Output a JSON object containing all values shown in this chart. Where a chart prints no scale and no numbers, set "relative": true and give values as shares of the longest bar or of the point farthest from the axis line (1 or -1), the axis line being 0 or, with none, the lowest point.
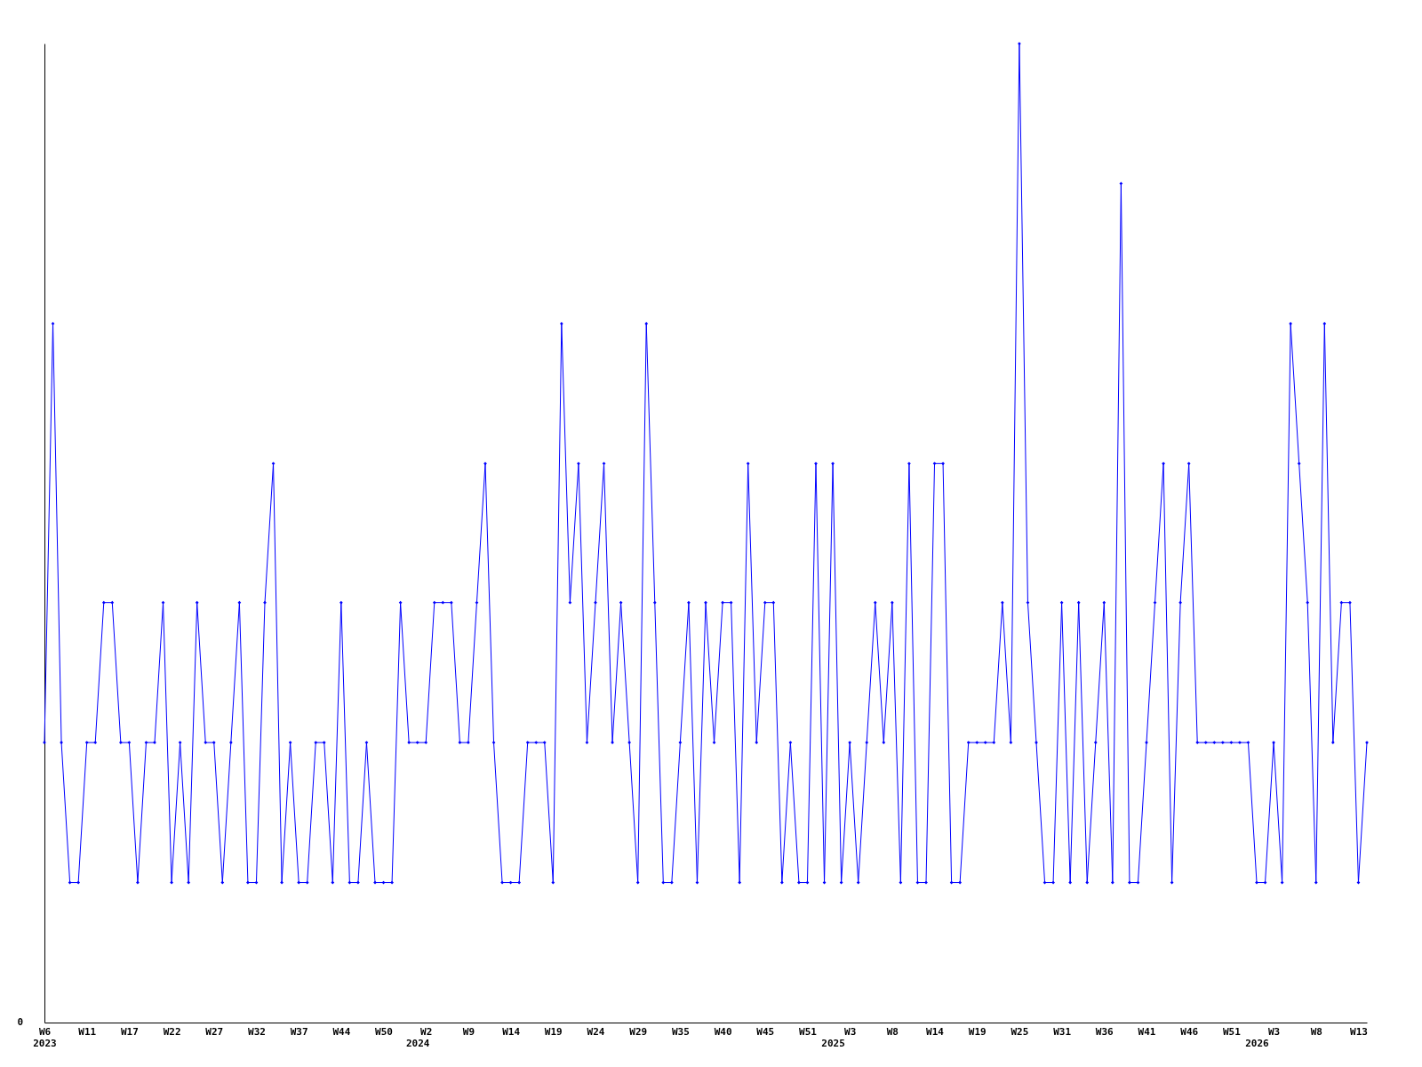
{
  "chart_data": {
    "type": "line",
    "relative": true,
    "marker": "diamond",
    "line_style": "solid",
    "annotations": [
      "0"
    ],
    "categories": [
      "W6\n2023",
      null,
      null,
      null,
      null,
      "W11",
      null,
      null,
      null,
      null,
      "W17",
      null,
      null,
      null,
      null,
      "W22",
      null,
      null,
      null,
      null,
      "W27",
      null,
      null,
      null,
      null,
      "W32",
      null,
      null,
      null,
      null,
      "W37",
      null,
      null,
      null,
      null,
      "W44",
      null,
      null,
      null,
      null,
      "W50",
      null,
      null,
      null,
      "\n2024",
      "W2",
      null,
      null,
      null,
      null,
      "W9",
      null,
      null,
      null,
      null,
      "W14",
      null,
      null,
      null,
      null,
      "W19",
      null,
      null,
      null,
      null,
      "W24",
      null,
      null,
      null,
      null,
      "W29",
      null,
      null,
      null,
      null,
      "W35",
      null,
      null,
      null,
      null,
      "W40",
      null,
      null,
      null,
      null,
      "W45",
      null,
      null,
      null,
      null,
      "W51",
      null,
      null,
      "\n2025",
      null,
      "W3",
      null,
      null,
      null,
      null,
      "W8",
      null,
      null,
      null,
      null,
      "W14",
      null,
      null,
      null,
      null,
      "W19",
      null,
      null,
      null,
      null,
      "W25",
      null,
      null,
      null,
      null,
      "W31",
      null,
      null,
      null,
      null,
      "W36",
      null,
      null,
      null,
      null,
      "W41",
      null,
      null,
      null,
      null,
      "W46",
      null,
      null,
      null,
      null,
      "W51",
      null,
      null,
      "\n2026",
      null,
      "W3",
      null,
      null,
      null,
      null,
      "W8",
      null,
      null,
      null,
      null,
      "W13",
      null
    ],
    "series": [
      {
        "color": "#0000ff",
        "values": [
          0.286,
          0.714,
          0.286,
          0.143,
          0.143,
          0.286,
          0.286,
          0.429,
          0.429,
          0.286,
          0.286,
          0.143,
          0.286,
          0.286,
          0.429,
          0.143,
          0.286,
          0.143,
          0.429,
          0.286,
          0.286,
          0.143,
          0.286,
          0.429,
          0.143,
          0.143,
          0.429,
          0.571,
          0.143,
          0.286,
          0.143,
          0.143,
          0.286,
          0.286,
          0.143,
          0.429,
          0.143,
          0.143,
          0.286,
          0.143,
          0.143,
          0.143,
          0.429,
          0.286,
          0.286,
          0.286,
          0.429,
          0.429,
          0.429,
          0.286,
          0.286,
          0.429,
          0.571,
          0.286,
          0.143,
          0.143,
          0.143,
          0.286,
          0.286,
          0.286,
          0.143,
          0.714,
          0.429,
          0.571,
          0.286,
          0.429,
          0.571,
          0.286,
          0.429,
          0.286,
          0.143,
          0.714,
          0.429,
          0.143,
          0.143,
          0.286,
          0.429,
          0.143,
          0.429,
          0.286,
          0.429,
          0.429,
          0.143,
          0.571,
          0.286,
          0.429,
          0.429,
          0.143,
          0.286,
          0.143,
          0.143,
          0.571,
          0.143,
          0.571,
          0.143,
          0.286,
          0.143,
          0.286,
          0.429,
          0.286,
          0.429,
          0.143,
          0.571,
          0.143,
          0.143,
          0.571,
          0.571,
          0.143,
          0.143,
          0.286,
          0.286,
          0.286,
          0.286,
          0.429,
          0.286,
          1,
          0.429,
          0.286,
          0.143,
          0.143,
          0.429,
          0.143,
          0.429,
          0.143,
          0.286,
          0.429,
          0.143,
          0.857,
          0.143,
          0.143,
          0.286,
          0.429,
          0.571,
          0.143,
          0.429,
          0.571,
          0.286,
          0.286,
          0.286,
          0.286,
          0.286,
          0.286,
          0.286,
          0.143,
          0.143,
          0.286,
          0.143,
          0.714,
          0.571,
          0.429,
          0.143,
          0.714,
          0.286,
          0.429,
          0.429,
          0.143,
          0.286
        ]
      }
    ]
  }
}
